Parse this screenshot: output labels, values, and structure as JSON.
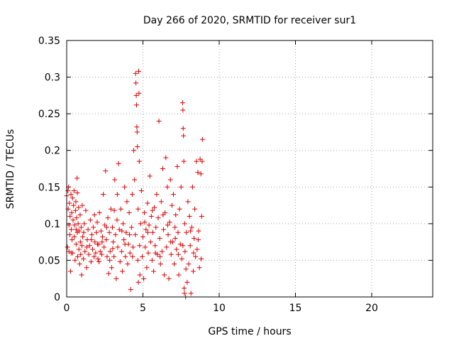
{
  "chart_data": {
    "type": "scatter",
    "title": "Day 266 of 2020, SRMTID for receiver sur1",
    "xlabel": "GPS time / hours",
    "ylabel": "SRMTID / TECUs",
    "xlim": [
      0,
      24
    ],
    "ylim": [
      0,
      0.35
    ],
    "x_ticks": [
      0,
      5,
      10,
      15,
      20
    ],
    "x_tick_labels": [
      "0",
      "5",
      "10",
      "15",
      "20"
    ],
    "y_ticks": [
      0,
      0.05,
      0.1,
      0.15,
      0.2,
      0.25,
      0.3,
      0.35
    ],
    "y_tick_labels": [
      "0",
      "0.05",
      "0.1",
      "0.15",
      "0.2",
      "0.25",
      "0.3",
      "0.35"
    ],
    "grid": true,
    "marker": "+",
    "color": "#dd0000",
    "series": [
      {
        "points": [
          [
            0.0,
            0.138
          ],
          [
            0.05,
            0.068
          ],
          [
            0.08,
            0.145
          ],
          [
            0.1,
            0.12
          ],
          [
            0.12,
            0.15
          ],
          [
            0.15,
            0.098
          ],
          [
            0.18,
            0.128
          ],
          [
            0.2,
            0.085
          ],
          [
            0.22,
            0.11
          ],
          [
            0.25,
            0.035
          ],
          [
            0.28,
            0.14
          ],
          [
            0.3,
            0.092
          ],
          [
            0.33,
            0.115
          ],
          [
            0.35,
            0.078
          ],
          [
            0.38,
            0.135
          ],
          [
            0.4,
            0.06
          ],
          [
            0.42,
            0.105
          ],
          [
            0.45,
            0.125
          ],
          [
            0.48,
            0.145
          ],
          [
            0.5,
            0.082
          ],
          [
            0.52,
            0.098
          ],
          [
            0.55,
            0.05
          ],
          [
            0.58,
            0.118
          ],
          [
            0.6,
            0.13
          ],
          [
            0.62,
            0.072
          ],
          [
            0.65,
            0.108
          ],
          [
            0.68,
            0.162
          ],
          [
            0.7,
            0.088
          ],
          [
            0.72,
            0.055
          ],
          [
            0.75,
            0.1
          ],
          [
            0.78,
            0.122
          ],
          [
            0.8,
            0.065
          ],
          [
            0.82,
            0.09
          ],
          [
            0.85,
            0.045
          ],
          [
            0.88,
            0.112
          ],
          [
            0.9,
            0.075
          ],
          [
            0.92,
            0.058
          ],
          [
            0.95,
            0.095
          ],
          [
            0.98,
            0.03
          ],
          [
            1.0,
            0.07
          ],
          [
            1.05,
            0.082
          ],
          [
            1.1,
            0.052
          ],
          [
            1.15,
            0.1
          ],
          [
            1.2,
            0.062
          ],
          [
            1.25,
            0.118
          ],
          [
            1.3,
            0.04
          ],
          [
            1.35,
            0.078
          ],
          [
            1.4,
            0.092
          ],
          [
            1.45,
            0.058
          ],
          [
            1.5,
            0.07
          ],
          [
            1.55,
            0.105
          ],
          [
            1.6,
            0.048
          ],
          [
            1.65,
            0.085
          ],
          [
            1.7,
            0.065
          ],
          [
            1.75,
            0.095
          ],
          [
            1.8,
            0.055
          ],
          [
            1.85,
            0.075
          ],
          [
            1.9,
            0.06
          ],
          [
            1.95,
            0.088
          ],
          [
            2.0,
            0.102
          ],
          [
            2.05,
            0.052
          ],
          [
            2.1,
            0.072
          ],
          [
            2.15,
            0.115
          ],
          [
            2.2,
            0.062
          ],
          [
            2.25,
            0.09
          ],
          [
            2.3,
            0.058
          ],
          [
            2.35,
            0.082
          ],
          [
            2.4,
            0.14
          ],
          [
            2.45,
            0.068
          ],
          [
            2.5,
            0.098
          ],
          [
            2.55,
            0.172
          ],
          [
            2.6,
            0.078
          ],
          [
            2.65,
            0.055
          ],
          [
            2.7,
            0.108
          ],
          [
            2.75,
            0.032
          ],
          [
            2.8,
            0.088
          ],
          [
            2.85,
            0.062
          ],
          [
            2.9,
            0.12
          ],
          [
            2.95,
            0.04
          ],
          [
            3.0,
            0.095
          ],
          [
            3.05,
            0.075
          ],
          [
            3.1,
            0.055
          ],
          [
            3.15,
            0.16
          ],
          [
            3.2,
            0.085
          ],
          [
            3.25,
            0.025
          ],
          [
            3.3,
            0.105
          ],
          [
            3.35,
            0.068
          ],
          [
            3.4,
            0.182
          ],
          [
            3.45,
            0.092
          ],
          [
            3.5,
            0.048
          ],
          [
            3.55,
            0.12
          ],
          [
            3.6,
            0.062
          ],
          [
            3.65,
            0.035
          ],
          [
            3.7,
            0.1
          ],
          [
            3.75,
            0.078
          ],
          [
            3.8,
            0.15
          ],
          [
            3.85,
            0.055
          ],
          [
            3.9,
            0.088
          ],
          [
            3.95,
            0.13
          ],
          [
            4.0,
            0.045
          ],
          [
            4.05,
            0.072
          ],
          [
            4.1,
            0.115
          ],
          [
            4.15,
            0.06
          ],
          [
            4.2,
            0.01
          ],
          [
            4.25,
            0.095
          ],
          [
            4.3,
            0.14
          ],
          [
            4.35,
            0.068
          ],
          [
            4.4,
            0.2
          ],
          [
            4.45,
            0.16
          ],
          [
            4.5,
            0.085
          ],
          [
            4.52,
            0.305
          ],
          [
            4.54,
            0.292
          ],
          [
            4.56,
            0.275
          ],
          [
            4.58,
            0.262
          ],
          [
            4.6,
            0.232
          ],
          [
            4.62,
            0.225
          ],
          [
            4.64,
            0.205
          ],
          [
            4.66,
            0.05
          ],
          [
            4.68,
            0.12
          ],
          [
            4.7,
            0.02
          ],
          [
            4.72,
            0.308
          ],
          [
            4.74,
            0.278
          ],
          [
            4.76,
            0.185
          ],
          [
            4.78,
            0.07
          ],
          [
            4.8,
            0.03
          ],
          [
            4.85,
            0.1
          ],
          [
            4.9,
            0.145
          ],
          [
            4.95,
            0.055
          ],
          [
            5.0,
            0.082
          ],
          [
            5.05,
            0.025
          ],
          [
            5.1,
            0.115
          ],
          [
            5.15,
            0.068
          ],
          [
            5.2,
            0.092
          ],
          [
            5.25,
            0.04
          ],
          [
            5.3,
            0.128
          ],
          [
            5.35,
            0.06
          ],
          [
            5.4,
            0.098
          ],
          [
            5.45,
            0.165
          ],
          [
            5.5,
            0.075
          ],
          [
            5.55,
            0.11
          ],
          [
            5.6,
            0.05
          ],
          [
            5.65,
            0.088
          ],
          [
            5.7,
            0.035
          ],
          [
            5.75,
            0.122
          ],
          [
            5.8,
            0.07
          ],
          [
            5.85,
            0.095
          ],
          [
            5.9,
            0.14
          ],
          [
            5.95,
            0.058
          ],
          [
            6.0,
            0.108
          ],
          [
            6.05,
            0.24
          ],
          [
            6.1,
            0.08
          ],
          [
            6.15,
            0.045
          ],
          [
            6.2,
            0.13
          ],
          [
            6.25,
            0.062
          ],
          [
            6.3,
            0.175
          ],
          [
            6.35,
            0.092
          ],
          [
            6.4,
            0.03
          ],
          [
            6.45,
            0.115
          ],
          [
            6.5,
            0.19
          ],
          [
            6.55,
            0.068
          ],
          [
            6.6,
            0.15
          ],
          [
            6.65,
            0.085
          ],
          [
            6.7,
            0.025
          ],
          [
            6.75,
            0.102
          ],
          [
            6.8,
            0.16
          ],
          [
            6.85,
            0.058
          ],
          [
            6.9,
            0.125
          ],
          [
            6.95,
            0.075
          ],
          [
            7.0,
            0.14
          ],
          [
            7.05,
            0.045
          ],
          [
            7.1,
            0.095
          ],
          [
            7.15,
            0.112
          ],
          [
            7.2,
            0.065
          ],
          [
            7.25,
            0.178
          ],
          [
            7.3,
            0.088
          ],
          [
            7.35,
            0.03
          ],
          [
            7.4,
            0.12
          ],
          [
            7.45,
            0.072
          ],
          [
            7.5,
            0.15
          ],
          [
            7.55,
            0.052
          ],
          [
            7.6,
            0.265
          ],
          [
            7.62,
            0.255
          ],
          [
            7.64,
            0.23
          ],
          [
            7.66,
            0.22
          ],
          [
            7.68,
            0.185
          ],
          [
            7.7,
            0.012
          ],
          [
            7.72,
            0.005
          ],
          [
            7.74,
            0.1
          ],
          [
            7.76,
            0.062
          ],
          [
            7.8,
            0.0
          ],
          [
            7.85,
            0.088
          ],
          [
            7.9,
            0.02
          ],
          [
            7.95,
            0.13
          ],
          [
            8.0,
            0.045
          ],
          [
            8.05,
            0.11
          ],
          [
            8.1,
            0.07
          ],
          [
            8.15,
            0.005
          ],
          [
            8.2,
            0.095
          ],
          [
            8.25,
            0.15
          ],
          [
            8.3,
            0.035
          ],
          [
            8.35,
            0.08
          ],
          [
            8.4,
            0.12
          ],
          [
            8.45,
            0.055
          ],
          [
            8.5,
            0.185
          ],
          [
            8.55,
            0.065
          ],
          [
            8.6,
            0.17
          ],
          [
            8.65,
            0.09
          ],
          [
            8.7,
            0.04
          ],
          [
            8.75,
            0.188
          ],
          [
            8.8,
            0.168
          ],
          [
            8.85,
            0.11
          ],
          [
            8.88,
            0.185
          ],
          [
            8.9,
            0.215
          ],
          [
            0.3,
            0.06
          ],
          [
            0.7,
            0.142
          ],
          [
            1.12,
            0.088
          ],
          [
            1.62,
            0.078
          ],
          [
            2.12,
            0.048
          ],
          [
            2.62,
            0.095
          ],
          [
            3.12,
            0.118
          ],
          [
            3.62,
            0.09
          ],
          [
            4.12,
            0.085
          ],
          [
            5.12,
            0.102
          ],
          [
            5.62,
            0.118
          ],
          [
            6.12,
            0.055
          ],
          [
            6.62,
            0.098
          ],
          [
            7.12,
            0.08
          ],
          [
            7.62,
            0.07
          ],
          [
            8.12,
            0.09
          ],
          [
            8.62,
            0.078
          ],
          [
            0.15,
            0.062
          ],
          [
            0.62,
            0.092
          ],
          [
            1.32,
            0.068
          ],
          [
            1.82,
            0.112
          ],
          [
            2.32,
            0.075
          ],
          [
            2.82,
            0.05
          ],
          [
            3.32,
            0.14
          ],
          [
            3.82,
            0.072
          ],
          [
            4.32,
            0.055
          ],
          [
            5.32,
            0.088
          ],
          [
            5.82,
            0.06
          ],
          [
            6.32,
            0.112
          ],
          [
            6.82,
            0.075
          ],
          [
            7.32,
            0.058
          ],
          [
            7.82,
            0.038
          ],
          [
            8.32,
            0.06
          ],
          [
            8.82,
            0.052
          ],
          [
            1.02,
            0.125
          ],
          [
            2.02,
            0.072
          ],
          [
            3.02,
            0.066
          ]
        ]
      }
    ]
  }
}
